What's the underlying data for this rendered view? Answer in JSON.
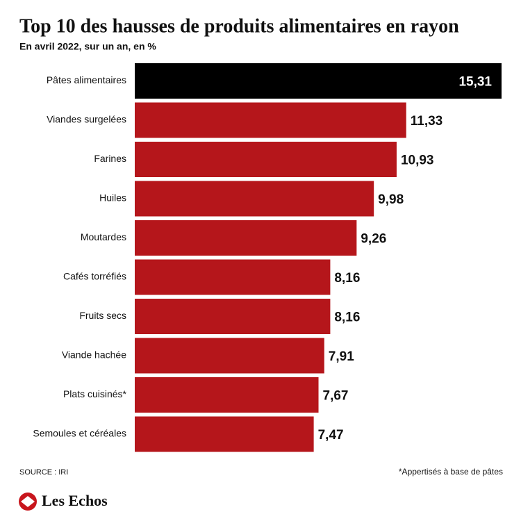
{
  "chart_data": {
    "type": "bar",
    "orientation": "horizontal",
    "title": "Top 10 des hausses de produits alimentaires en rayon",
    "subtitle": "En avril 2022, sur un an, en %",
    "categories": [
      "Pâtes alimentaires",
      "Viandes surgelées",
      "Farines",
      "Huiles",
      "Moutardes",
      "Cafés torréfiés",
      "Fruits secs",
      "Viande hachée",
      "Plats cuisinés*",
      "Semoules et céréales"
    ],
    "values": [
      15.31,
      11.33,
      10.93,
      9.98,
      9.26,
      8.16,
      8.16,
      7.91,
      7.67,
      7.47
    ],
    "value_labels": [
      "15,31",
      "11,33",
      "10,93",
      "9,98",
      "9,26",
      "8,16",
      "8,16",
      "7,91",
      "7,67",
      "7,47"
    ],
    "colors": [
      "#000000",
      "#b5161b",
      "#b5161b",
      "#b5161b",
      "#b5161b",
      "#b5161b",
      "#b5161b",
      "#b5161b",
      "#b5161b",
      "#b5161b"
    ],
    "source": "SOURCE : IRI",
    "note": "*Appertisés à base de pâtes"
  },
  "brand": "Les Echos"
}
